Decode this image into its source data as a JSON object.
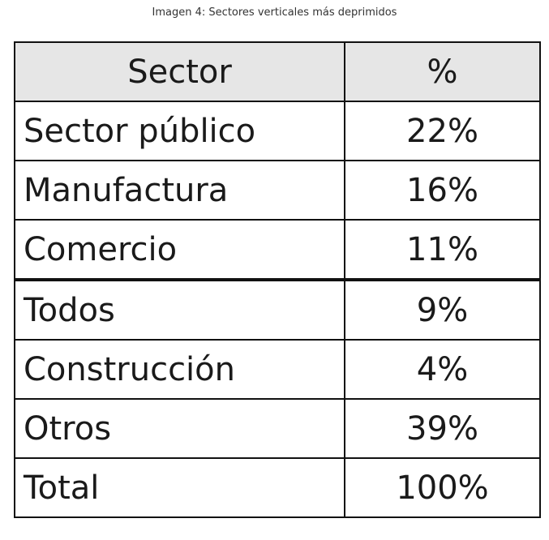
{
  "caption": "Imagen 4: Sectores verticales más deprimidos",
  "table": {
    "header": [
      "Sector",
      "%"
    ],
    "rows": [
      [
        "Sector público",
        "22%"
      ],
      [
        "Manufactura",
        "16%"
      ],
      [
        "Comercio",
        "11%"
      ],
      [
        "Todos",
        "9%"
      ],
      [
        "Construcción",
        "4%"
      ],
      [
        "Otros",
        "39%"
      ],
      [
        "Total",
        "100%"
      ]
    ]
  }
}
